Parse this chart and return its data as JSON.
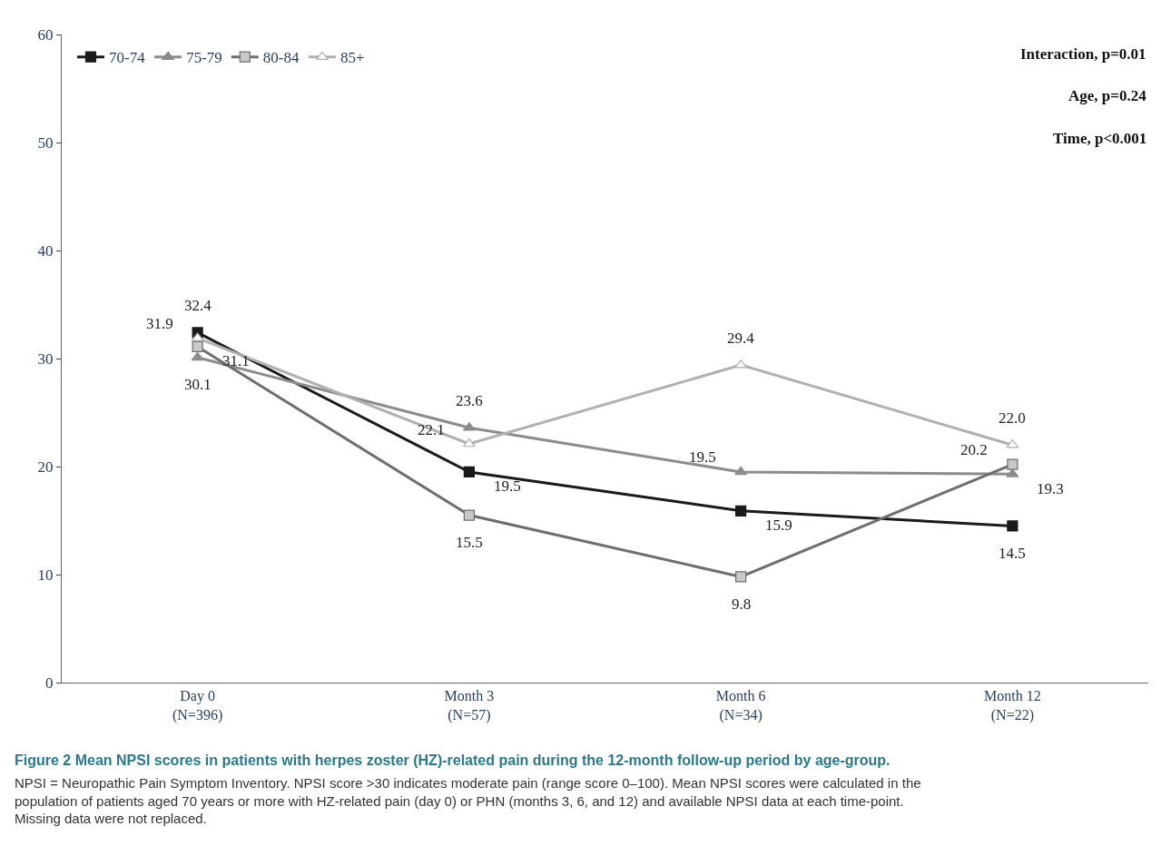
{
  "chart_data": {
    "type": "line",
    "title": "Figure 2 Mean NPSI scores in patients with herpes zoster (HZ)-related pain during the 12-month follow-up period by age-group.",
    "categories": [
      "Day 0\n(N=396)",
      "Month 3\n(N=57)",
      "Month 6\n(N=34)",
      "Month 12\n(N=22)"
    ],
    "series": [
      {
        "name": "70-74",
        "color": "#1a1a1a",
        "marker": "square",
        "values": [
          32.4,
          19.5,
          15.9,
          14.5
        ],
        "value_labels": [
          "32.4",
          "19.5",
          "15.9",
          "14.5"
        ]
      },
      {
        "name": "75-79",
        "color": "#8c8c8c",
        "marker": "triangle",
        "values": [
          30.1,
          23.6,
          19.5,
          19.3
        ],
        "value_labels": [
          "30.1",
          "23.6",
          "19.5",
          "19.3"
        ]
      },
      {
        "name": "80-84",
        "color": "#6e6e6e",
        "marker": "square",
        "values": [
          31.1,
          15.5,
          9.8,
          20.2
        ],
        "value_labels": [
          "31.1",
          "15.5",
          "9.8",
          "20.2"
        ]
      },
      {
        "name": "85+",
        "color": "#b0b0b0",
        "marker": "triangle",
        "values": [
          31.9,
          22.1,
          29.4,
          22.0
        ],
        "value_labels": [
          "31.9",
          "22.1",
          "29.4",
          "22.0"
        ]
      }
    ],
    "ylim": [
      0,
      60
    ],
    "yticks": [
      0,
      10,
      20,
      30,
      40,
      50,
      60
    ],
    "legend": "top left",
    "annotations": [
      "Interaction, p=0.01",
      "Age, p=0.24",
      "Time, p<0.001",
      "NPSI = Neuropathic Pain Symptom Inventory. NPSI score >30 indicates moderate pain (range score 0–100). Mean NPSI scores were calculated in the population of patients aged 70 years or more with HZ-related pain (day 0) or PHN (months 3, 6, and 12) and available NPSI data at each time-point. Missing data were not replaced."
    ]
  }
}
